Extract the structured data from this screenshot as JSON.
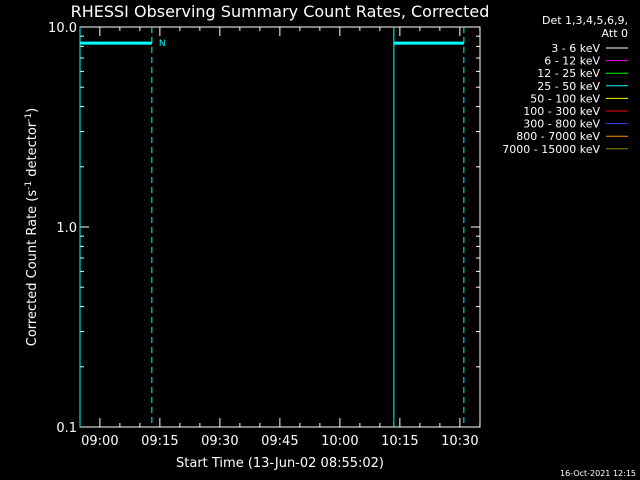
{
  "chart_data": {
    "type": "line",
    "title": "RHESSI Observing Summary Count Rates, Corrected",
    "ylabel": "Corrected Count Rate (s",
    "ylabel_sup1": "-1",
    "ylabel_mid": " detector",
    "ylabel_sup2": "-1",
    "ylabel_end": ")",
    "xlabel": "Start Time (13-Jun-02 08:55:02)",
    "y_scale": "log",
    "ylim": [
      0.1,
      10.0
    ],
    "xlim": [
      "08:55:02",
      "10:35:02"
    ],
    "y_ticks": [
      {
        "value": 0.1,
        "label": "0.1"
      },
      {
        "value": 1.0,
        "label": "1.0"
      },
      {
        "value": 10.0,
        "label": "10.0"
      }
    ],
    "x_ticks": [
      "09:00",
      "09:15",
      "09:30",
      "09:45",
      "10:00",
      "10:15",
      "10:30"
    ],
    "legend_header": [
      "Det 1,3,4,5,6,9,",
      "Att 0"
    ],
    "legend_position": "top-right outside plot",
    "series": [
      {
        "name": "3 - 6 keV",
        "color": "#ffffff",
        "segments": []
      },
      {
        "name": "6 - 12 keV",
        "color": "#ff00ff",
        "segments": []
      },
      {
        "name": "12 - 25 keV",
        "color": "#00ff00",
        "segments": []
      },
      {
        "name": "25 - 50 keV",
        "color": "#00ffff",
        "segments": [
          {
            "x": [
              "08:55:02",
              "09:13:00"
            ],
            "y": [
              8.3,
              8.3
            ]
          },
          {
            "x": [
              "10:13:30",
              "10:31:00"
            ],
            "y": [
              8.3,
              8.3
            ]
          }
        ]
      },
      {
        "name": "50 - 100 keV",
        "color": "#ffff00",
        "segments": []
      },
      {
        "name": "100 - 300 keV",
        "color": "#ff0000",
        "segments": []
      },
      {
        "name": "300 - 800 keV",
        "color": "#4040ff",
        "segments": []
      },
      {
        "name": "800 - 7000 keV",
        "color": "#ff8c00",
        "segments": []
      },
      {
        "name": "7000 - 15000 keV",
        "color": "#8b8b00",
        "segments": []
      }
    ],
    "vlines": [
      {
        "x": "08:55:02",
        "style": "solid",
        "color": "#00ffff"
      },
      {
        "x": "09:13:00",
        "style": "dashed",
        "color": "#00ffff"
      },
      {
        "x": "10:13:30",
        "style": "solid",
        "color": "#00ffff"
      },
      {
        "x": "10:31:00",
        "style": "dashed",
        "color": "#00ffff"
      }
    ],
    "annotations": [
      {
        "text": "N",
        "x": "09:14:00",
        "y": 8.3,
        "color": "#00ffff"
      }
    ],
    "footer": "16-Oct-2021 12:15"
  }
}
